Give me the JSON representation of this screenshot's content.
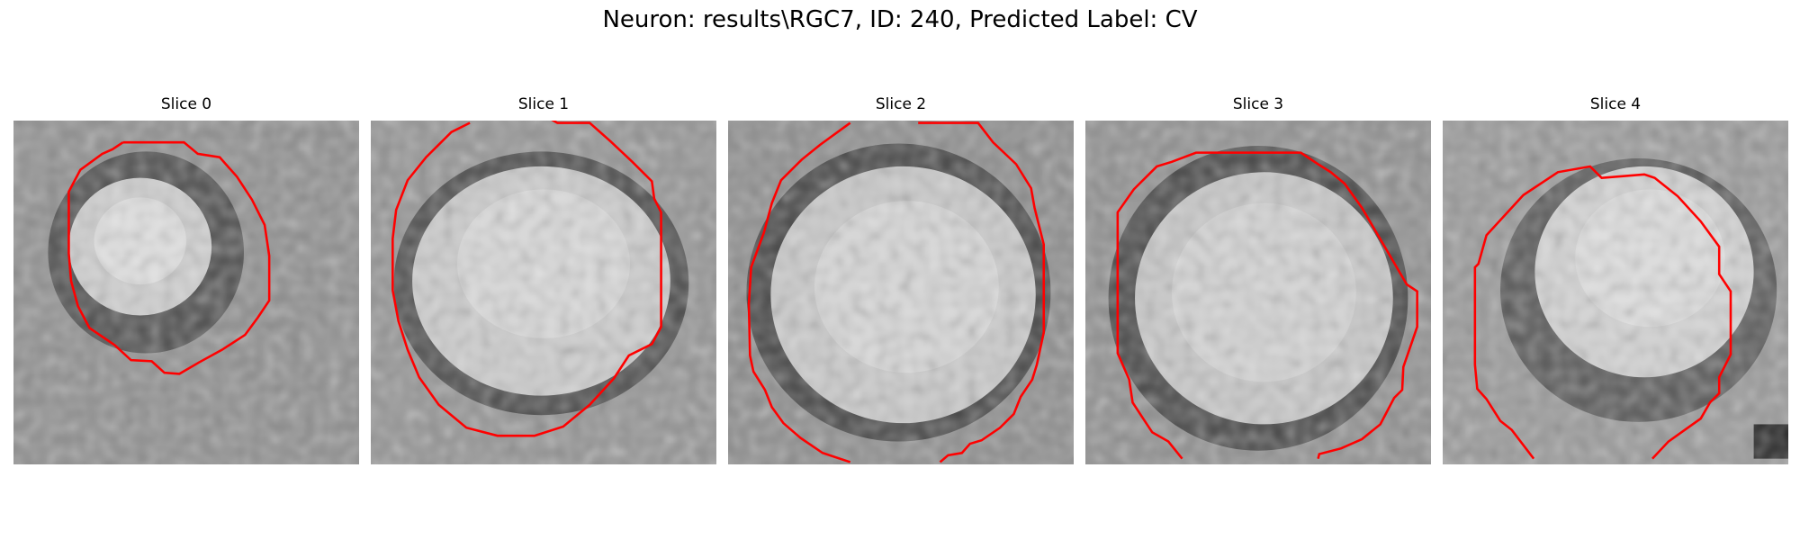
{
  "figure": {
    "title": "Neuron: results\\RGC7, ID: 240, Predicted Label: CV",
    "contour_color": "#ff0000",
    "slices": [
      {
        "title": "Slice 0"
      },
      {
        "title": "Slice 1"
      },
      {
        "title": "Slice 2"
      },
      {
        "title": "Slice 3"
      },
      {
        "title": "Slice 4"
      }
    ]
  }
}
